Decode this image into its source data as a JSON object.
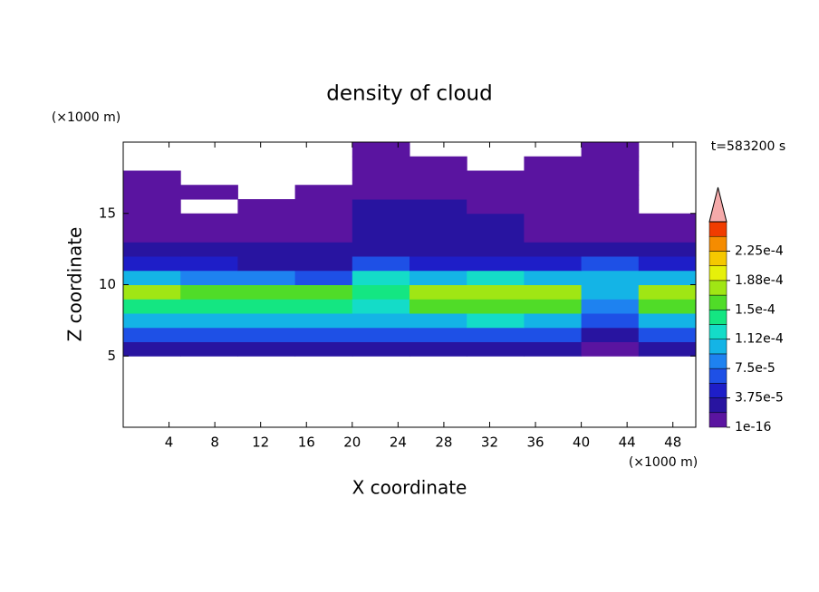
{
  "chart_data": {
    "type": "contour",
    "title": "density of cloud",
    "xlabel": "X coordinate",
    "ylabel": "Z coordinate",
    "x_unit_label": "(×1000 m)",
    "y_unit_label": "(×1000 m)",
    "time_label": "t=583200 s",
    "xlim": [
      0,
      50
    ],
    "ylim": [
      0,
      20
    ],
    "xticks": [
      4,
      8,
      12,
      16,
      20,
      24,
      28,
      32,
      36,
      40,
      44,
      48
    ],
    "yticks": [
      5,
      10,
      15
    ],
    "xbins": [
      0,
      5,
      10,
      15,
      20,
      25,
      30,
      35,
      40,
      45,
      50
    ],
    "zbins": [
      5,
      6,
      7,
      8,
      9,
      10,
      11,
      12,
      13,
      14,
      15,
      16,
      17,
      18,
      19,
      20
    ],
    "values": [
      [
        2e-05,
        2e-05,
        2e-05,
        2e-05,
        2e-05,
        2e-05,
        2e-05,
        2e-05,
        1e-05,
        2e-05
      ],
      [
        6e-05,
        6e-05,
        6e-05,
        6e-05,
        6e-05,
        6e-05,
        6e-05,
        6e-05,
        3e-05,
        6e-05
      ],
      [
        0.00011,
        0.00011,
        0.00011,
        0.00011,
        0.0001,
        0.00011,
        0.00012,
        0.00011,
        6e-05,
        0.00011
      ],
      [
        0.000145,
        0.00014,
        0.000145,
        0.00014,
        0.00012,
        0.00015,
        0.00016,
        0.000155,
        8e-05,
        0.00015
      ],
      [
        0.00017,
        0.00016,
        0.00016,
        0.00015,
        0.00014,
        0.00017,
        0.00018,
        0.000175,
        0.00011,
        0.00017
      ],
      [
        0.00011,
        9e-05,
        8e-05,
        7e-05,
        0.00012,
        0.00011,
        0.00012,
        0.00011,
        0.0001,
        0.00011
      ],
      [
        4e-05,
        4e-05,
        3e-05,
        3e-05,
        6e-05,
        4e-05,
        4e-05,
        4e-05,
        7e-05,
        5e-05
      ],
      [
        2.5e-05,
        2.5e-05,
        2.5e-05,
        2.5e-05,
        3e-05,
        2.5e-05,
        2.5e-05,
        2.5e-05,
        3e-05,
        2.5e-05
      ],
      [
        1.5e-05,
        1.5e-05,
        1.5e-05,
        1.5e-05,
        2.5e-05,
        2.5e-05,
        2e-05,
        1.5e-05,
        1.5e-05,
        1.5e-05
      ],
      [
        1e-05,
        1e-05,
        1e-05,
        1e-05,
        2.2e-05,
        2.2e-05,
        2e-05,
        1e-05,
        1e-05,
        1e-05
      ],
      [
        1e-05,
        null,
        1e-05,
        1e-05,
        2e-05,
        2e-05,
        1.5e-05,
        1e-05,
        1e-05,
        null
      ],
      [
        1e-05,
        1e-05,
        null,
        1e-05,
        1.5e-05,
        1.5e-05,
        1e-05,
        1e-05,
        1e-05,
        null
      ],
      [
        1e-05,
        null,
        null,
        null,
        1e-05,
        1e-05,
        1e-05,
        1e-05,
        1e-05,
        null
      ],
      [
        null,
        null,
        null,
        null,
        1e-05,
        1e-05,
        null,
        1e-05,
        1e-05,
        null
      ],
      [
        null,
        null,
        null,
        null,
        1e-05,
        null,
        null,
        null,
        1e-05,
        null
      ]
    ],
    "levels": [
      0,
      1.875e-05,
      3.75e-05,
      5.625e-05,
      7.5e-05,
      9.375e-05,
      0.0001125,
      0.00013125,
      0.00015,
      0.00016875,
      0.0001875,
      0.00020625,
      0.000225,
      0.00024375,
      0.0002625
    ],
    "colors": [
      "#5a14a0",
      "#2814a0",
      "#1e1ec8",
      "#1e50e6",
      "#1e82f0",
      "#14b4e6",
      "#14dcc8",
      "#14e682",
      "#50dc28",
      "#a0e614",
      "#e6f00a",
      "#f5c800",
      "#f58c00",
      "#f03c00"
    ],
    "extend_color": "#f5aaaa",
    "colorbar_ticks": [
      {
        "value": 1e-16,
        "label": "1e-16"
      },
      {
        "value": 3.75e-05,
        "label": "3.75e-5"
      },
      {
        "value": 7.5e-05,
        "label": "7.5e-5"
      },
      {
        "value": 0.0001125,
        "label": "1.12e-4"
      },
      {
        "value": 0.00015,
        "label": "1.5e-4"
      },
      {
        "value": 0.0001875,
        "label": "1.88e-4"
      },
      {
        "value": 0.000225,
        "label": "2.25e-4"
      }
    ]
  }
}
